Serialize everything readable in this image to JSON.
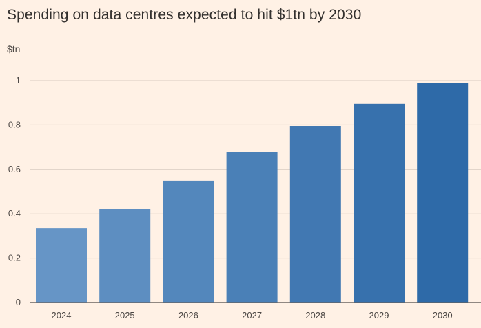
{
  "chart_data": {
    "type": "bar",
    "title": "Spending on data centres expected to hit $1tn by 2030",
    "unit_label": "$tn",
    "categories": [
      "2024",
      "2025",
      "2026",
      "2027",
      "2028",
      "2029",
      "2030"
    ],
    "values": [
      0.335,
      0.42,
      0.55,
      0.68,
      0.795,
      0.895,
      0.99
    ],
    "ylim": [
      0,
      1
    ],
    "yticks": [
      "0",
      "0.2",
      "0.4",
      "0.6",
      "0.8",
      "1"
    ],
    "ytick_values": [
      0,
      0.2,
      0.4,
      0.6,
      0.8,
      1
    ],
    "grid": true,
    "colors": {
      "bar_start": "#6695c6",
      "bar_end": "#2e6aa8",
      "grid": "#d9ccc1",
      "axis": "#66605c",
      "background": "#fff1e5"
    }
  }
}
